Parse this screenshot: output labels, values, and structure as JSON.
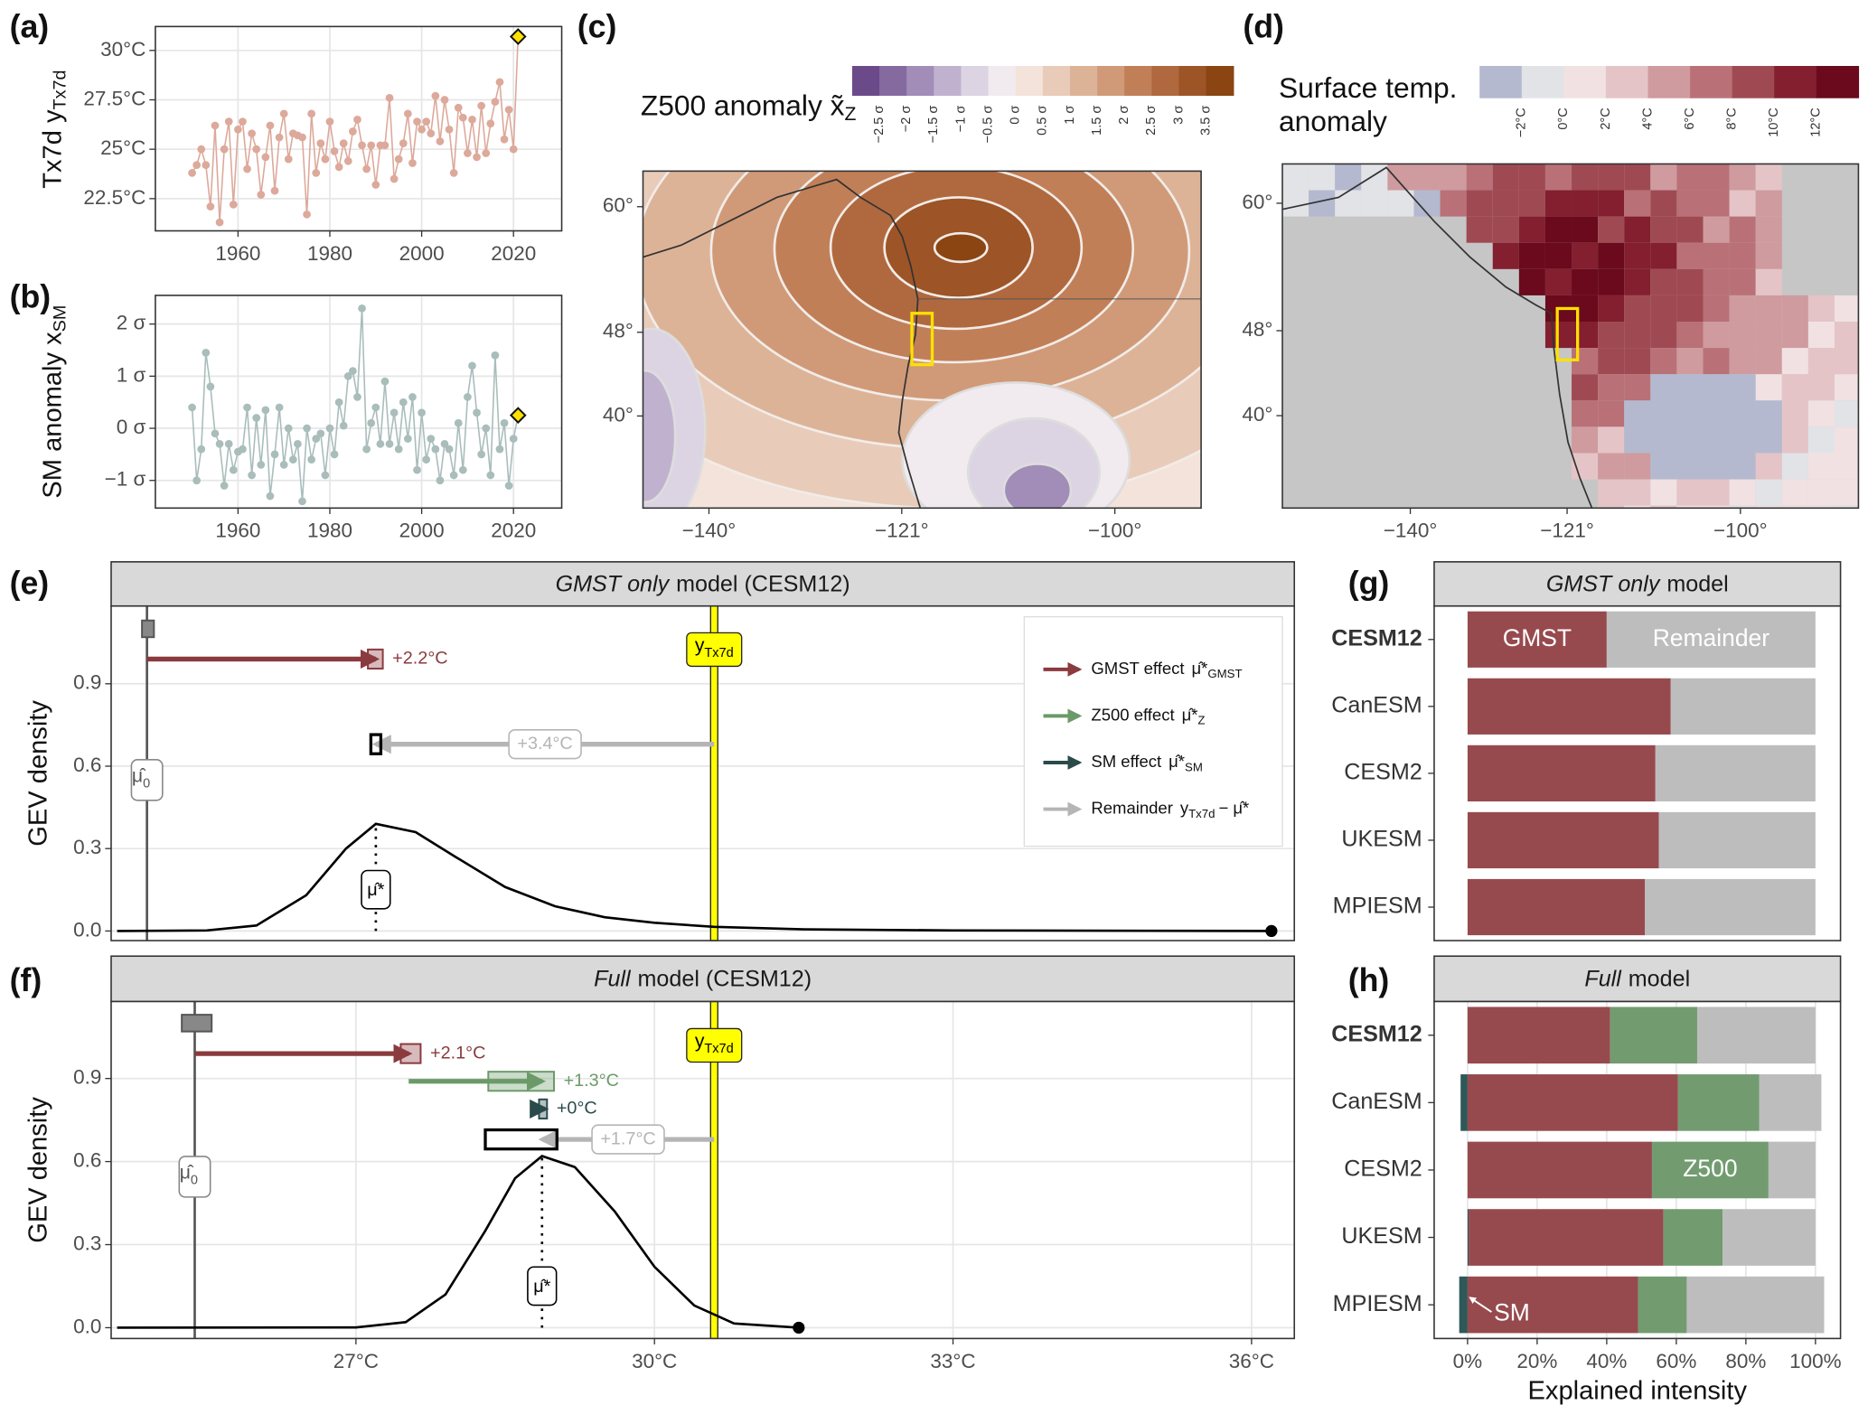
{
  "chart_data": [
    {
      "type": "line",
      "panel": "(a)",
      "ylabel": "Tx7d y",
      "ylabel_sub": "Tx7d",
      "xlim": [
        1942,
        2030.5
      ],
      "ylim": [
        20.87,
        31.21
      ],
      "grid": true,
      "highlight_color": "#ffe000",
      "xticks": [
        1960,
        1980,
        2000,
        2020
      ],
      "yticks": [
        {
          "value": 22.5,
          "label": "22.5°C"
        },
        {
          "value": 25,
          "label": "25°C"
        },
        {
          "value": 27.5,
          "label": "27.5°C"
        },
        {
          "value": 30,
          "label": "30°C"
        }
      ],
      "x": [
        1950,
        1951,
        1952,
        1953,
        1954,
        1955,
        1956,
        1957,
        1958,
        1959,
        1960,
        1961,
        1962,
        1963,
        1964,
        1965,
        1966,
        1967,
        1968,
        1969,
        1970,
        1971,
        1972,
        1973,
        1974,
        1975,
        1976,
        1977,
        1978,
        1979,
        1980,
        1981,
        1982,
        1983,
        1984,
        1985,
        1986,
        1987,
        1988,
        1989,
        1990,
        1991,
        1992,
        1993,
        1994,
        1995,
        1996,
        1997,
        1998,
        1999,
        2000,
        2001,
        2002,
        2003,
        2004,
        2005,
        2006,
        2007,
        2008,
        2009,
        2010,
        2011,
        2012,
        2013,
        2014,
        2015,
        2016,
        2017,
        2018,
        2019,
        2020,
        2021
      ],
      "series": [
        {
          "color": "#dca99b",
          "values": [
            23.8,
            24.2,
            25.0,
            24.2,
            22.1,
            26.2,
            21.3,
            25.0,
            26.4,
            22.2,
            26.0,
            26.4,
            24.0,
            25.8,
            25.0,
            22.7,
            24.6,
            26.2,
            22.9,
            25.6,
            26.8,
            24.5,
            25.8,
            25.7,
            25.6,
            21.7,
            26.8,
            23.8,
            25.3,
            24.5,
            26.4,
            24.9,
            24.1,
            25.3,
            24.4,
            25.9,
            26.5,
            25.2,
            24.0,
            25.2,
            23.2,
            25.2,
            25.2,
            27.6,
            23.5,
            24.5,
            25.3,
            26.8,
            24.3,
            26.4,
            26.0,
            26.4,
            25.8,
            27.7,
            25.4,
            27.5,
            26.0,
            23.8,
            27.1,
            26.6,
            24.8,
            26.5,
            24.6,
            27.2,
            24.8,
            26.3,
            27.4,
            28.4,
            25.5,
            27.0,
            25.0,
            30.7
          ]
        }
      ]
    },
    {
      "type": "line",
      "panel": "(b)",
      "ylabel": "SM anomaly x",
      "ylabel_sub": "SM",
      "xlim": [
        1942,
        2030.5
      ],
      "ylim": [
        -1.53,
        2.55
      ],
      "grid": true,
      "highlight_color": "#ffe000",
      "xticks": [
        1960,
        1980,
        2000,
        2020
      ],
      "yticks": [
        {
          "value": -1,
          "label": "−1 σ"
        },
        {
          "value": 0,
          "label": "0 σ"
        },
        {
          "value": 1,
          "label": "1 σ"
        },
        {
          "value": 2,
          "label": "2 σ"
        }
      ],
      "x": [
        1950,
        1951,
        1952,
        1953,
        1954,
        1955,
        1956,
        1957,
        1958,
        1959,
        1960,
        1961,
        1962,
        1963,
        1964,
        1965,
        1966,
        1967,
        1968,
        1969,
        1970,
        1971,
        1972,
        1973,
        1974,
        1975,
        1976,
        1977,
        1978,
        1979,
        1980,
        1981,
        1982,
        1983,
        1984,
        1985,
        1986,
        1987,
        1988,
        1989,
        1990,
        1991,
        1992,
        1993,
        1994,
        1995,
        1996,
        1997,
        1998,
        1999,
        2000,
        2001,
        2002,
        2003,
        2004,
        2005,
        2006,
        2007,
        2008,
        2009,
        2010,
        2011,
        2012,
        2013,
        2014,
        2015,
        2016,
        2017,
        2018,
        2019,
        2020,
        2021
      ],
      "series": [
        {
          "color": "#a9bdbb",
          "values": [
            0.4,
            -1.0,
            -0.4,
            1.45,
            0.8,
            -0.1,
            -0.3,
            -1.1,
            -0.3,
            -0.8,
            -0.45,
            -0.4,
            0.4,
            -0.9,
            0.2,
            -0.7,
            0.35,
            -1.3,
            -0.5,
            0.4,
            -0.7,
            0.0,
            -0.6,
            -0.3,
            -1.4,
            0.0,
            -0.6,
            -0.2,
            -0.1,
            -0.9,
            0.0,
            -0.5,
            0.5,
            0.05,
            1.0,
            1.1,
            0.6,
            2.3,
            -0.4,
            0.1,
            0.4,
            -0.3,
            0.9,
            -0.3,
            0.3,
            -0.4,
            0.5,
            -0.2,
            0.6,
            -0.8,
            0.3,
            -0.6,
            -0.2,
            -0.4,
            -1.0,
            -0.3,
            -0.4,
            -0.9,
            0.1,
            -0.8,
            0.6,
            1.2,
            0.3,
            -0.5,
            0.0,
            -0.9,
            1.4,
            -0.4,
            0.1,
            -1.1,
            -0.2,
            0.25
          ]
        }
      ]
    },
    {
      "type": "map",
      "panel": "(c)",
      "title": "Z500 anomaly x̃",
      "title_sub": "Z",
      "grid": false,
      "xlim": [
        -146.5,
        -91.5
      ],
      "ylim": [
        31.2,
        63.4
      ],
      "xticks": [
        {
          "value": -140,
          "label": "−140°"
        },
        {
          "value": -121,
          "label": "−121°"
        },
        {
          "value": -100,
          "label": "−100°"
        }
      ],
      "yticks": [
        {
          "value": 40,
          "label": "40°"
        },
        {
          "value": 48,
          "label": "48°"
        },
        {
          "value": 60,
          "label": "60°"
        }
      ],
      "colorbar": {
        "colors": [
          "#6b4a8a",
          "#856aa0",
          "#a18db7",
          "#c0b2cf",
          "#ddd4e3",
          "#f1ebef",
          "#f3e3da",
          "#e9cbb9",
          "#ddb398",
          "#d09a78",
          "#c17f58",
          "#b0693e",
          "#9d5426",
          "#8a4513"
        ],
        "labels": [
          "−2.5 σ",
          "−2 σ",
          "−1.5 σ",
          "−1 σ",
          "−0.5 σ",
          "0 σ",
          "0.5 σ",
          "1 σ",
          "1.5 σ",
          "2 σ",
          "2.5 σ",
          "3 σ",
          "3.5 σ"
        ]
      }
    },
    {
      "type": "map",
      "panel": "(d)",
      "title": [
        "Surface temp.",
        "anomaly"
      ],
      "grid": false,
      "xlim": [
        -155.5,
        -85.7
      ],
      "ylim": [
        31.3,
        63.7
      ],
      "xticks": [
        {
          "value": -140,
          "label": "−140°"
        },
        {
          "value": -121,
          "label": "−121°"
        },
        {
          "value": -100,
          "label": "−100°"
        }
      ],
      "yticks": [
        {
          "value": 40,
          "label": "40°"
        },
        {
          "value": 48,
          "label": "48°"
        },
        {
          "value": 60,
          "label": "60°"
        }
      ],
      "colorbar": {
        "colors": [
          "#b4b9cf",
          "#e2e3e6",
          "#f1e1e2",
          "#e5c4c7",
          "#cf9b9f",
          "#b97177",
          "#9f4a53",
          "#831f2f",
          "#6a0a1c"
        ],
        "labels": [
          "−2°C",
          "0°C",
          "2°C",
          "4°C",
          "6°C",
          "8°C",
          "10°C",
          "12°C"
        ]
      }
    },
    {
      "type": "gev",
      "panel": "(e)",
      "strip_italic": "GMST only",
      "strip_text": "model (CESM12)",
      "ylabel": "GEV density",
      "grid": true,
      "xlim": [
        24.54,
        36.43
      ],
      "ylim": [
        -0.035,
        1.183
      ],
      "yticks": [
        {
          "value": 0,
          "label": "0.0"
        },
        0.3,
        0.6,
        0.9
      ],
      "curve": {
        "x": [
          24.6,
          25.5,
          26.0,
          26.5,
          26.9,
          27.2,
          27.6,
          28.0,
          28.5,
          29.0,
          29.5,
          30.0,
          30.6,
          31.5,
          33.0,
          36.2
        ],
        "y": [
          0,
          0.002,
          0.02,
          0.13,
          0.3,
          0.39,
          0.36,
          0.27,
          0.16,
          0.09,
          0.05,
          0.03,
          0.015,
          0.006,
          0.002,
          0
        ]
      },
      "mu0": {
        "value": 24.9,
        "label": "μ̂",
        "label_sub": "0",
        "box": [
          24.85,
          24.97
        ],
        "box_y": 1.1
      },
      "mu_star": {
        "value": 27.2,
        "label": "μ̂*",
        "box": [
          27.15,
          27.25
        ]
      },
      "obs": {
        "value": 30.6,
        "label": "y",
        "label_sub": "Tx7d",
        "color": "#ffff00"
      },
      "arrows": [
        {
          "from": 24.9,
          "to": 27.2,
          "y": 0.99,
          "color": "#8b3a3e",
          "label": "+2.2°C",
          "box": [
            27.12,
            27.27
          ]
        },
        {
          "from": 30.6,
          "to": 27.2,
          "y": 0.68,
          "color": "#b5b5b5",
          "label": "+3.4°C"
        }
      ],
      "legend": [
        {
          "name": "GMST effect",
          "symbol": "μ̂*",
          "sub": "GMST",
          "color": "#8b3a3e"
        },
        {
          "name": "Z500 effect",
          "symbol": "μ̂*",
          "sub": "Z",
          "color": "#6b9a68"
        },
        {
          "name": "SM effect",
          "symbol": "μ̂*",
          "sub": "SM",
          "color": "#2b4a4a"
        },
        {
          "name": "Remainder",
          "symbol": "y",
          "sub": "Tx7d",
          "suffix": "− μ̂*",
          "color": "#b5b5b5"
        }
      ]
    },
    {
      "type": "gev",
      "panel": "(f)",
      "strip_italic": "Full",
      "strip_text": "model (CESM12)",
      "ylabel": "GEV density",
      "grid": true,
      "xlim": [
        24.54,
        36.43
      ],
      "ylim": [
        -0.039,
        1.178
      ],
      "xticks": [
        {
          "value": 27,
          "label": "27°C"
        },
        {
          "value": 30,
          "label": "30°C"
        },
        {
          "value": 33,
          "label": "33°C"
        },
        {
          "value": 36,
          "label": "36°C"
        }
      ],
      "yticks": [
        {
          "value": 0,
          "label": "0.0"
        },
        0.3,
        0.6,
        0.9
      ],
      "curve": {
        "x": [
          24.6,
          27.0,
          27.5,
          27.9,
          28.3,
          28.6,
          28.87,
          29.2,
          29.6,
          30.0,
          30.4,
          30.8,
          31.45
        ],
        "y": [
          0,
          0.001,
          0.02,
          0.12,
          0.35,
          0.54,
          0.62,
          0.58,
          0.42,
          0.22,
          0.08,
          0.015,
          0
        ]
      },
      "mu0": {
        "value": 25.38,
        "label": "μ̂",
        "label_sub": "0",
        "box": [
          25.25,
          25.55
        ],
        "box_y": 1.1
      },
      "mu_star": {
        "value": 28.87,
        "label": "μ̂*",
        "box": [
          28.3,
          29.02
        ]
      },
      "obs": {
        "value": 30.6,
        "label": "y",
        "label_sub": "Tx7d",
        "color": "#ffff00"
      },
      "arrows": [
        {
          "from": 25.38,
          "to": 27.53,
          "y": 0.99,
          "color": "#8b3a3e",
          "label": "+2.1°C",
          "box": [
            27.45,
            27.65
          ]
        },
        {
          "from": 27.53,
          "to": 28.87,
          "y": 0.89,
          "color": "#6b9a68",
          "label": "+1.3°C",
          "box": [
            28.33,
            28.99
          ]
        },
        {
          "from": 28.85,
          "to": 28.9,
          "y": 0.79,
          "color": "#2b4a4a",
          "label": "+0°C",
          "box": [
            28.84,
            28.92
          ]
        },
        {
          "from": 30.6,
          "to": 28.87,
          "y": 0.68,
          "color": "#b5b5b5",
          "label": "+1.7°C"
        }
      ]
    },
    {
      "type": "stacked_bar",
      "panel": "(g)",
      "strip_italic": "GMST only",
      "strip_text": "model",
      "grid": true,
      "xlim": [
        -9.6,
        107.2
      ],
      "categories": [
        "CESM12",
        "CanESM",
        "CESM2",
        "UKESM",
        "MPIESM"
      ],
      "series": [
        {
          "name": "GMST",
          "color": "#974a4e",
          "values": [
            40,
            58.4,
            54,
            55,
            51
          ]
        },
        {
          "name": "Remainder",
          "color": "#bdbdbd",
          "values": [
            60,
            41.6,
            46,
            45,
            49
          ]
        }
      ]
    },
    {
      "type": "stacked_bar",
      "panel": "(h)",
      "strip_italic": "Full",
      "strip_text": "model",
      "grid": true,
      "xlim": [
        -9.6,
        107.2
      ],
      "xlabel": "Explained intensity",
      "xticks": [
        {
          "value": 0,
          "label": "0%"
        },
        {
          "value": 20,
          "label": "20%"
        },
        {
          "value": 40,
          "label": "40%"
        },
        {
          "value": 60,
          "label": "60%"
        },
        {
          "value": 80,
          "label": "80%"
        },
        {
          "value": 100,
          "label": "100%"
        }
      ],
      "categories": [
        "CESM12",
        "CanESM",
        "CESM2",
        "UKESM",
        "MPIESM"
      ],
      "series": [
        {
          "name": "SM",
          "color": "#2f5858",
          "values": [
            0,
            -2,
            0,
            0.3,
            -2.4
          ]
        },
        {
          "name": "GMST",
          "color": "#974a4e",
          "values": [
            41,
            60.5,
            53,
            56,
            49
          ]
        },
        {
          "name": "Z500",
          "color": "#729c70",
          "values": [
            25,
            23.3,
            33.5,
            17,
            14
          ]
        },
        {
          "name": "Remainder",
          "color": "#bdbdbd",
          "values": [
            34,
            17.9,
            13.5,
            26.7,
            39.5
          ]
        }
      ]
    }
  ]
}
